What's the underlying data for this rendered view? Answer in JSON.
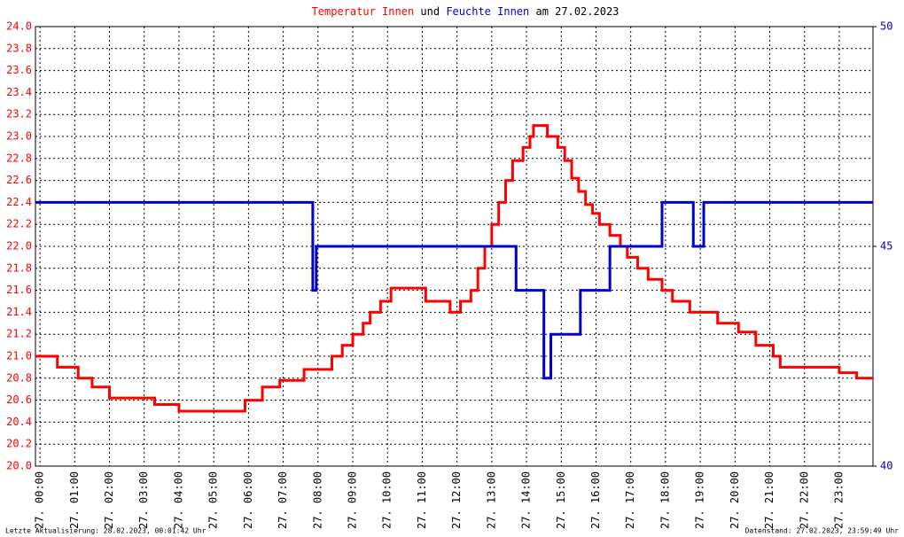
{
  "chart_data": {
    "type": "line",
    "step": "post",
    "title_parts": [
      {
        "text": "Temperatur Innen",
        "color": "#ff0000"
      },
      {
        "text": "und",
        "color": "#000000"
      },
      {
        "text": "Feuchte Innen",
        "color": "#0000cc"
      },
      {
        "text": "am 27.02.2023",
        "color": "#000000"
      }
    ],
    "footer_left": "Letzte Aktualisierung: 28.02.2023, 00:01:42 Uhr",
    "footer_right": "Datenstand: 27.02.2023, 23:59:49 Uhr",
    "grid": true,
    "xlim": [
      -0.13,
      23.97
    ],
    "xticks": [
      {
        "value": 0,
        "label": "27. 00:00"
      },
      {
        "value": 1,
        "label": "27. 01:00"
      },
      {
        "value": 2,
        "label": "27. 02:00"
      },
      {
        "value": 3,
        "label": "27. 03:00"
      },
      {
        "value": 4,
        "label": "27. 04:00"
      },
      {
        "value": 5,
        "label": "27. 05:00"
      },
      {
        "value": 6,
        "label": "27. 06:00"
      },
      {
        "value": 7,
        "label": "27. 07:00"
      },
      {
        "value": 8,
        "label": "27. 08:00"
      },
      {
        "value": 9,
        "label": "27. 09:00"
      },
      {
        "value": 10,
        "label": "27. 10:00"
      },
      {
        "value": 11,
        "label": "27. 11:00"
      },
      {
        "value": 12,
        "label": "27. 12:00"
      },
      {
        "value": 13,
        "label": "27. 13:00"
      },
      {
        "value": 14,
        "label": "27. 14:00"
      },
      {
        "value": 15,
        "label": "27. 15:00"
      },
      {
        "value": 16,
        "label": "27. 16:00"
      },
      {
        "value": 17,
        "label": "27. 17:00"
      },
      {
        "value": 18,
        "label": "27. 18:00"
      },
      {
        "value": 19,
        "label": "27. 19:00"
      },
      {
        "value": 20,
        "label": "27. 20:00"
      },
      {
        "value": 21,
        "label": "27. 21:00"
      },
      {
        "value": 22,
        "label": "27. 22:00"
      },
      {
        "value": 23,
        "label": "27. 23:00"
      }
    ],
    "ylim": [
      20,
      24
    ],
    "yticks": [
      {
        "value": 20,
        "label": "20.0"
      },
      20.2,
      20.4,
      20.6,
      20.8,
      {
        "value": 21,
        "label": "21.0"
      },
      21.2,
      21.4,
      21.6,
      21.8,
      {
        "value": 22,
        "label": "22.0"
      },
      22.2,
      22.4,
      22.6,
      22.8,
      {
        "value": 23,
        "label": "23.0"
      },
      23.2,
      23.4,
      23.6,
      23.8,
      {
        "value": 24,
        "label": "24.0"
      }
    ],
    "y_color": "#ff0000",
    "y2lim": [
      40,
      50
    ],
    "y2ticks": [
      40,
      45,
      50
    ],
    "y2_color": "#0000cc",
    "series": [
      {
        "name": "Temperatur Innen",
        "color": "#ff0000",
        "x": [
          -0.13,
          0.5,
          1.1,
          1.5,
          2.0,
          3.3,
          4.0,
          5.9,
          6.4,
          6.9,
          7.6,
          8.4,
          8.7,
          9.0,
          9.3,
          9.5,
          9.8,
          10.1,
          11.1,
          11.8,
          12.1,
          12.4,
          12.6,
          12.8,
          13.0,
          13.2,
          13.4,
          13.6,
          13.9,
          14.1,
          14.2,
          14.6,
          14.9,
          15.1,
          15.3,
          15.5,
          15.7,
          15.9,
          16.1,
          16.4,
          16.7,
          16.9,
          17.2,
          17.5,
          17.9,
          18.2,
          18.7,
          19.5,
          20.1,
          20.6,
          21.1,
          21.3,
          23.0,
          23.5,
          23.97
        ],
        "values": [
          21.0,
          20.9,
          20.8,
          20.72,
          20.62,
          20.56,
          20.5,
          20.6,
          20.72,
          20.78,
          20.88,
          21.0,
          21.1,
          21.2,
          21.3,
          21.4,
          21.5,
          21.62,
          21.5,
          21.4,
          21.5,
          21.6,
          21.8,
          22.0,
          22.2,
          22.4,
          22.6,
          22.78,
          22.9,
          23.0,
          23.1,
          23.0,
          22.9,
          22.78,
          22.62,
          22.5,
          22.38,
          22.3,
          22.2,
          22.1,
          22.0,
          21.9,
          21.8,
          21.7,
          21.6,
          21.5,
          21.4,
          21.3,
          21.22,
          21.1,
          21.0,
          20.9,
          20.85,
          20.8,
          20.8
        ]
      },
      {
        "name": "Feuchte Innen",
        "color": "#0000cc",
        "axis": "y2",
        "x": [
          -0.13,
          7.85,
          7.95,
          13.7,
          14.5,
          14.7,
          15.55,
          16.4,
          17.9,
          18.8,
          19.1,
          23.97
        ],
        "values": [
          46,
          44,
          45,
          44,
          42,
          43,
          44,
          45,
          46,
          45,
          46,
          46
        ]
      }
    ]
  }
}
